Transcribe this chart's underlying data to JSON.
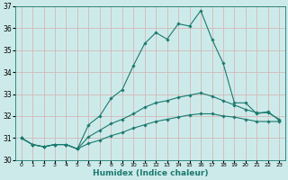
{
  "xlabel": "Humidex (Indice chaleur)",
  "x_values": [
    0,
    1,
    2,
    3,
    4,
    5,
    6,
    7,
    8,
    9,
    10,
    11,
    12,
    13,
    14,
    15,
    16,
    17,
    18,
    19,
    20,
    21,
    22,
    23
  ],
  "line1": [
    31.0,
    30.7,
    30.6,
    30.7,
    30.7,
    30.5,
    31.6,
    32.0,
    32.8,
    33.2,
    34.3,
    35.3,
    35.8,
    35.5,
    36.2,
    36.1,
    36.8,
    35.5,
    34.4,
    32.6,
    32.6,
    32.1,
    32.2,
    31.8
  ],
  "line2": [
    31.0,
    30.7,
    30.6,
    30.7,
    30.7,
    30.5,
    31.05,
    31.35,
    31.65,
    31.85,
    32.1,
    32.4,
    32.6,
    32.7,
    32.85,
    32.95,
    33.05,
    32.9,
    32.7,
    32.5,
    32.3,
    32.15,
    32.15,
    31.85
  ],
  "line3": [
    31.0,
    30.7,
    30.6,
    30.7,
    30.7,
    30.5,
    30.75,
    30.9,
    31.1,
    31.25,
    31.45,
    31.6,
    31.75,
    31.85,
    31.95,
    32.05,
    32.1,
    32.1,
    32.0,
    31.95,
    31.85,
    31.75,
    31.75,
    31.75
  ],
  "line_color": "#1a7a6e",
  "bg_color": "#cdeaea",
  "grid_color": "#d4b8b8",
  "ylim": [
    30.0,
    37.0
  ],
  "yticks": [
    30,
    31,
    32,
    33,
    34,
    35,
    36,
    37
  ],
  "marker": "D",
  "marker_size": 1.8,
  "linewidth": 0.8
}
